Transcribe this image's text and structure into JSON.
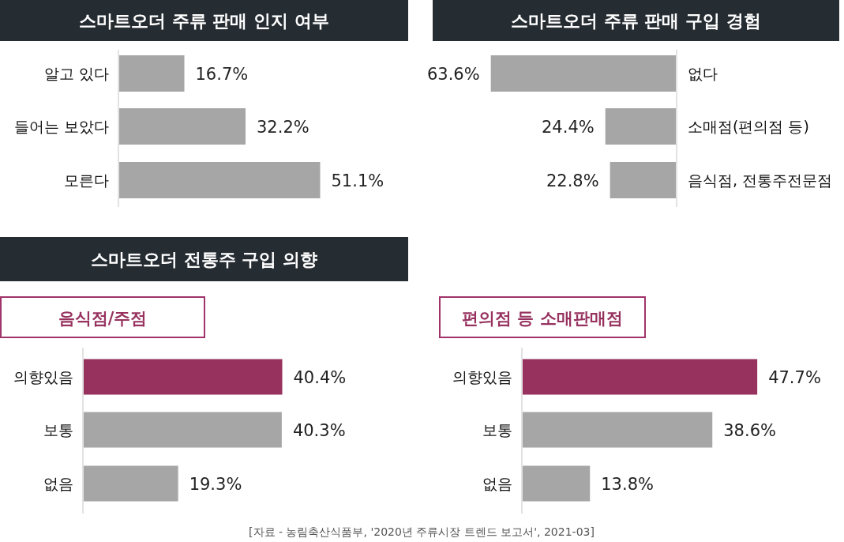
{
  "chart_data": [
    {
      "type": "bar",
      "orientation": "horizontal",
      "title": "스마트오더 주류 판매 인지 여부",
      "categories": [
        "알고 있다",
        "들어는 보았다",
        "모른다"
      ],
      "values": [
        16.7,
        32.2,
        51.1
      ],
      "value_labels": [
        "16.7%",
        "32.2%",
        "51.1%"
      ],
      "colors": [
        "#a6a6a6",
        "#a6a6a6",
        "#a6a6a6"
      ]
    },
    {
      "type": "bar",
      "orientation": "horizontal",
      "title": "스마트오더 주류 판매 구입 경험",
      "categories": [
        "없다",
        "소매점(편의점 등)",
        "음식점, 전통주전문점"
      ],
      "values": [
        63.6,
        24.4,
        22.8
      ],
      "value_labels": [
        "63.6%",
        "24.4%",
        "22.8%"
      ],
      "colors": [
        "#a6a6a6",
        "#a6a6a6",
        "#a6a6a6"
      ]
    },
    {
      "type": "bar",
      "orientation": "horizontal",
      "title": "스마트오더 전통주 구입 의향",
      "subtitle": "음식점/주점",
      "categories": [
        "의향있음",
        "보통",
        "없음"
      ],
      "values": [
        40.4,
        40.3,
        19.3
      ],
      "value_labels": [
        "40.4%",
        "40.3%",
        "19.3%"
      ],
      "colors": [
        "#97325f",
        "#a6a6a6",
        "#a6a6a6"
      ]
    },
    {
      "type": "bar",
      "orientation": "horizontal",
      "subtitle": "편의점 등 소매판매점",
      "categories": [
        "의향있음",
        "보통",
        "없음"
      ],
      "values": [
        47.7,
        38.6,
        13.8
      ],
      "value_labels": [
        "47.7%",
        "38.6%",
        "13.8%"
      ],
      "colors": [
        "#97325f",
        "#a6a6a6",
        "#a6a6a6"
      ],
      "annotations": [
        "[자료 - 농림축산식품부, '2020년 주류시장 트렌드 보고서', 2021-03]"
      ]
    }
  ]
}
